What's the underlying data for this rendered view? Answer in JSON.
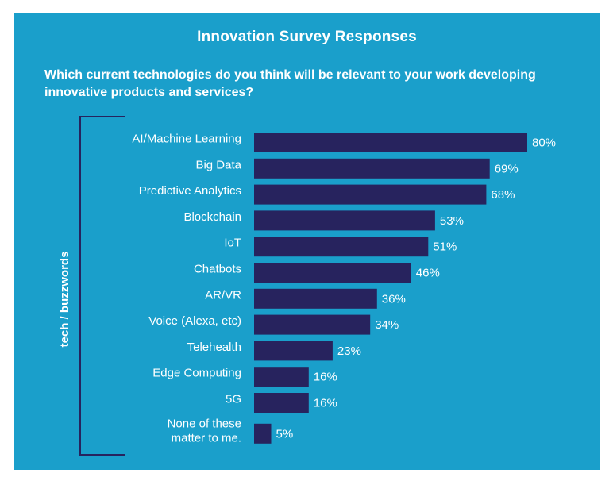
{
  "chart_data": {
    "type": "bar",
    "orientation": "horizontal",
    "title": "Innovation Survey Responses",
    "subtitle": "Which current technologies do you think will be relevant to your work developing innovative products and services?",
    "ylabel": "tech / buzzwords",
    "xlabel": "",
    "categories": [
      "AI/Machine Learning",
      "Big Data",
      "Predictive Analytics",
      "Blockchain",
      "IoT",
      "Chatbots",
      "AR/VR",
      "Voice (Alexa, etc)",
      "Telehealth",
      "Edge Computing",
      "5G",
      [
        "None of these",
        "matter to me."
      ]
    ],
    "values": [
      80,
      69,
      68,
      53,
      51,
      46,
      36,
      34,
      23,
      16,
      16,
      5
    ],
    "value_labels": [
      "80%",
      "69%",
      "68%",
      "53%",
      "51%",
      "46%",
      "36%",
      "34%",
      "23%",
      "16%",
      "16%",
      "5%"
    ],
    "xlim": [
      0,
      100
    ],
    "grid": false,
    "legend": "none",
    "colors": {
      "background": "#1a9fcb",
      "bar": "#27235e",
      "text": "#ffffff",
      "bracket": "#27235e"
    }
  }
}
